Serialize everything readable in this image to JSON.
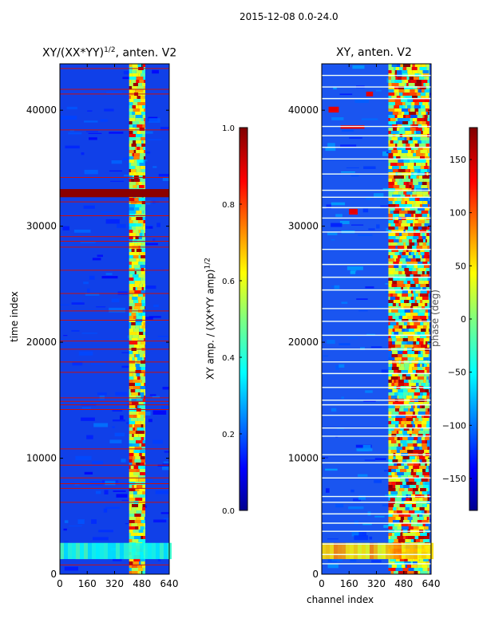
{
  "suptitle": "2015-12-08 0.0-24.0",
  "chart_data": [
    {
      "type": "heatmap",
      "title": "XY/(XX*YY)1/2, anten. V2",
      "title_main": "XY/(XX*YY)",
      "title_sup": "1/2",
      "title_tail": ", anten. V2",
      "xlabel": "",
      "ylabel": "time index",
      "x_ticks": [
        0,
        160,
        320,
        480,
        640
      ],
      "y_ticks": [
        0,
        10000,
        20000,
        30000,
        40000
      ],
      "xlim": [
        0,
        640
      ],
      "ylim": [
        0,
        44000
      ],
      "colorbar": {
        "label": "XY amp. / (XX*YY amp)1/2",
        "label_main": "XY amp. / (XX*YY amp)",
        "label_sup": "1/2",
        "ticks": [
          "0.0",
          "0.2",
          "0.4",
          "0.6",
          "0.8",
          "1.0"
        ],
        "range": [
          0,
          1
        ],
        "colormap": "jet"
      }
    },
    {
      "type": "heatmap",
      "title": "XY, anten. V2",
      "xlabel": "channel index",
      "ylabel": "",
      "x_ticks": [
        0,
        160,
        320,
        480,
        640
      ],
      "y_ticks": [
        0,
        10000,
        20000,
        30000,
        40000
      ],
      "xlim": [
        0,
        640
      ],
      "ylim": [
        0,
        44000
      ],
      "colorbar": {
        "label": "phase (deg)",
        "ticks": [
          "−150",
          "−100",
          "−50",
          "0",
          "50",
          "100",
          "150"
        ],
        "range": [
          -180,
          180
        ],
        "colormap": "jet"
      }
    }
  ],
  "colors": {
    "jet_dark_blue": "#00008f",
    "jet_blue": "#0000ff",
    "jet_cyan": "#00ffff",
    "jet_yellow": "#ffff00",
    "jet_red": "#ff0000",
    "jet_dark_red": "#800000"
  }
}
